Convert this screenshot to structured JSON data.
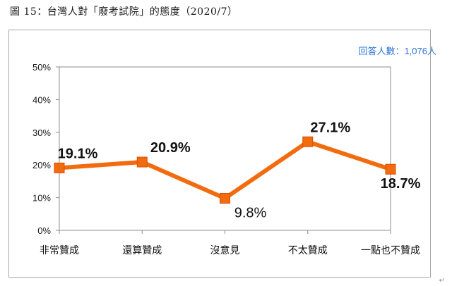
{
  "figure_caption": "圖 15：台灣人對「廢考試院」的態度（2020/7）",
  "sample_note": "回答人數：1,076人",
  "return_mark": "↵",
  "chart_data": {
    "type": "line",
    "title": "",
    "xlabel": "",
    "ylabel": "",
    "categories": [
      "非常贊成",
      "還算贊成",
      "沒意見",
      "不太贊成",
      "一點也不贊成"
    ],
    "series": [
      {
        "values": [
          19.1,
          20.9,
          9.8,
          27.1,
          18.7
        ],
        "color": "#f26b0f"
      }
    ],
    "data_labels": [
      "19.1%",
      "20.9%",
      "9.8%",
      "27.1%",
      "18.7%"
    ],
    "label_emphasis": [
      "bold",
      "bold",
      "normal",
      "bold",
      "bold"
    ],
    "ylim": [
      0,
      50
    ],
    "yticks": [
      0,
      10,
      20,
      30,
      40,
      50
    ],
    "ytick_labels": [
      "0%",
      "10%",
      "20%",
      "30%",
      "40%",
      "50%"
    ],
    "grid": false,
    "legend": "none"
  }
}
